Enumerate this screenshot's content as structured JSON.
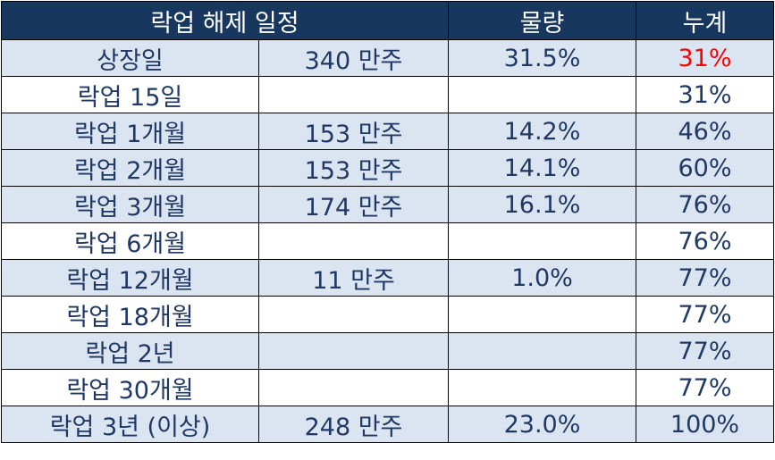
{
  "table": {
    "header": [
      "락업 해제 일정",
      "물량",
      "누계"
    ],
    "rows": [
      [
        "상장일",
        "340 만주",
        "31.5%",
        "31%"
      ],
      [
        "락업 15일",
        null,
        null,
        "31%"
      ],
      [
        "락업 1개월",
        "153 만주",
        "14.2%",
        "46%"
      ],
      [
        "락업 2개월",
        "153 만주",
        "14.1%",
        "60%"
      ],
      [
        "락업 3개월",
        "174 만주",
        "16.1%",
        "76%"
      ],
      [
        "락업 6개월",
        null,
        null,
        "76%"
      ],
      [
        "락업 12개월",
        "11 만주",
        "1.0%",
        "77%"
      ],
      [
        "락업 18개월",
        null,
        null,
        "77%"
      ],
      [
        "락업 2년",
        null,
        null,
        "77%"
      ],
      [
        "락업 30개월",
        null,
        null,
        "77%"
      ],
      [
        "락업 3년 (이상)",
        "248 만주",
        "23.0%",
        "100%"
      ]
    ]
  }
}
